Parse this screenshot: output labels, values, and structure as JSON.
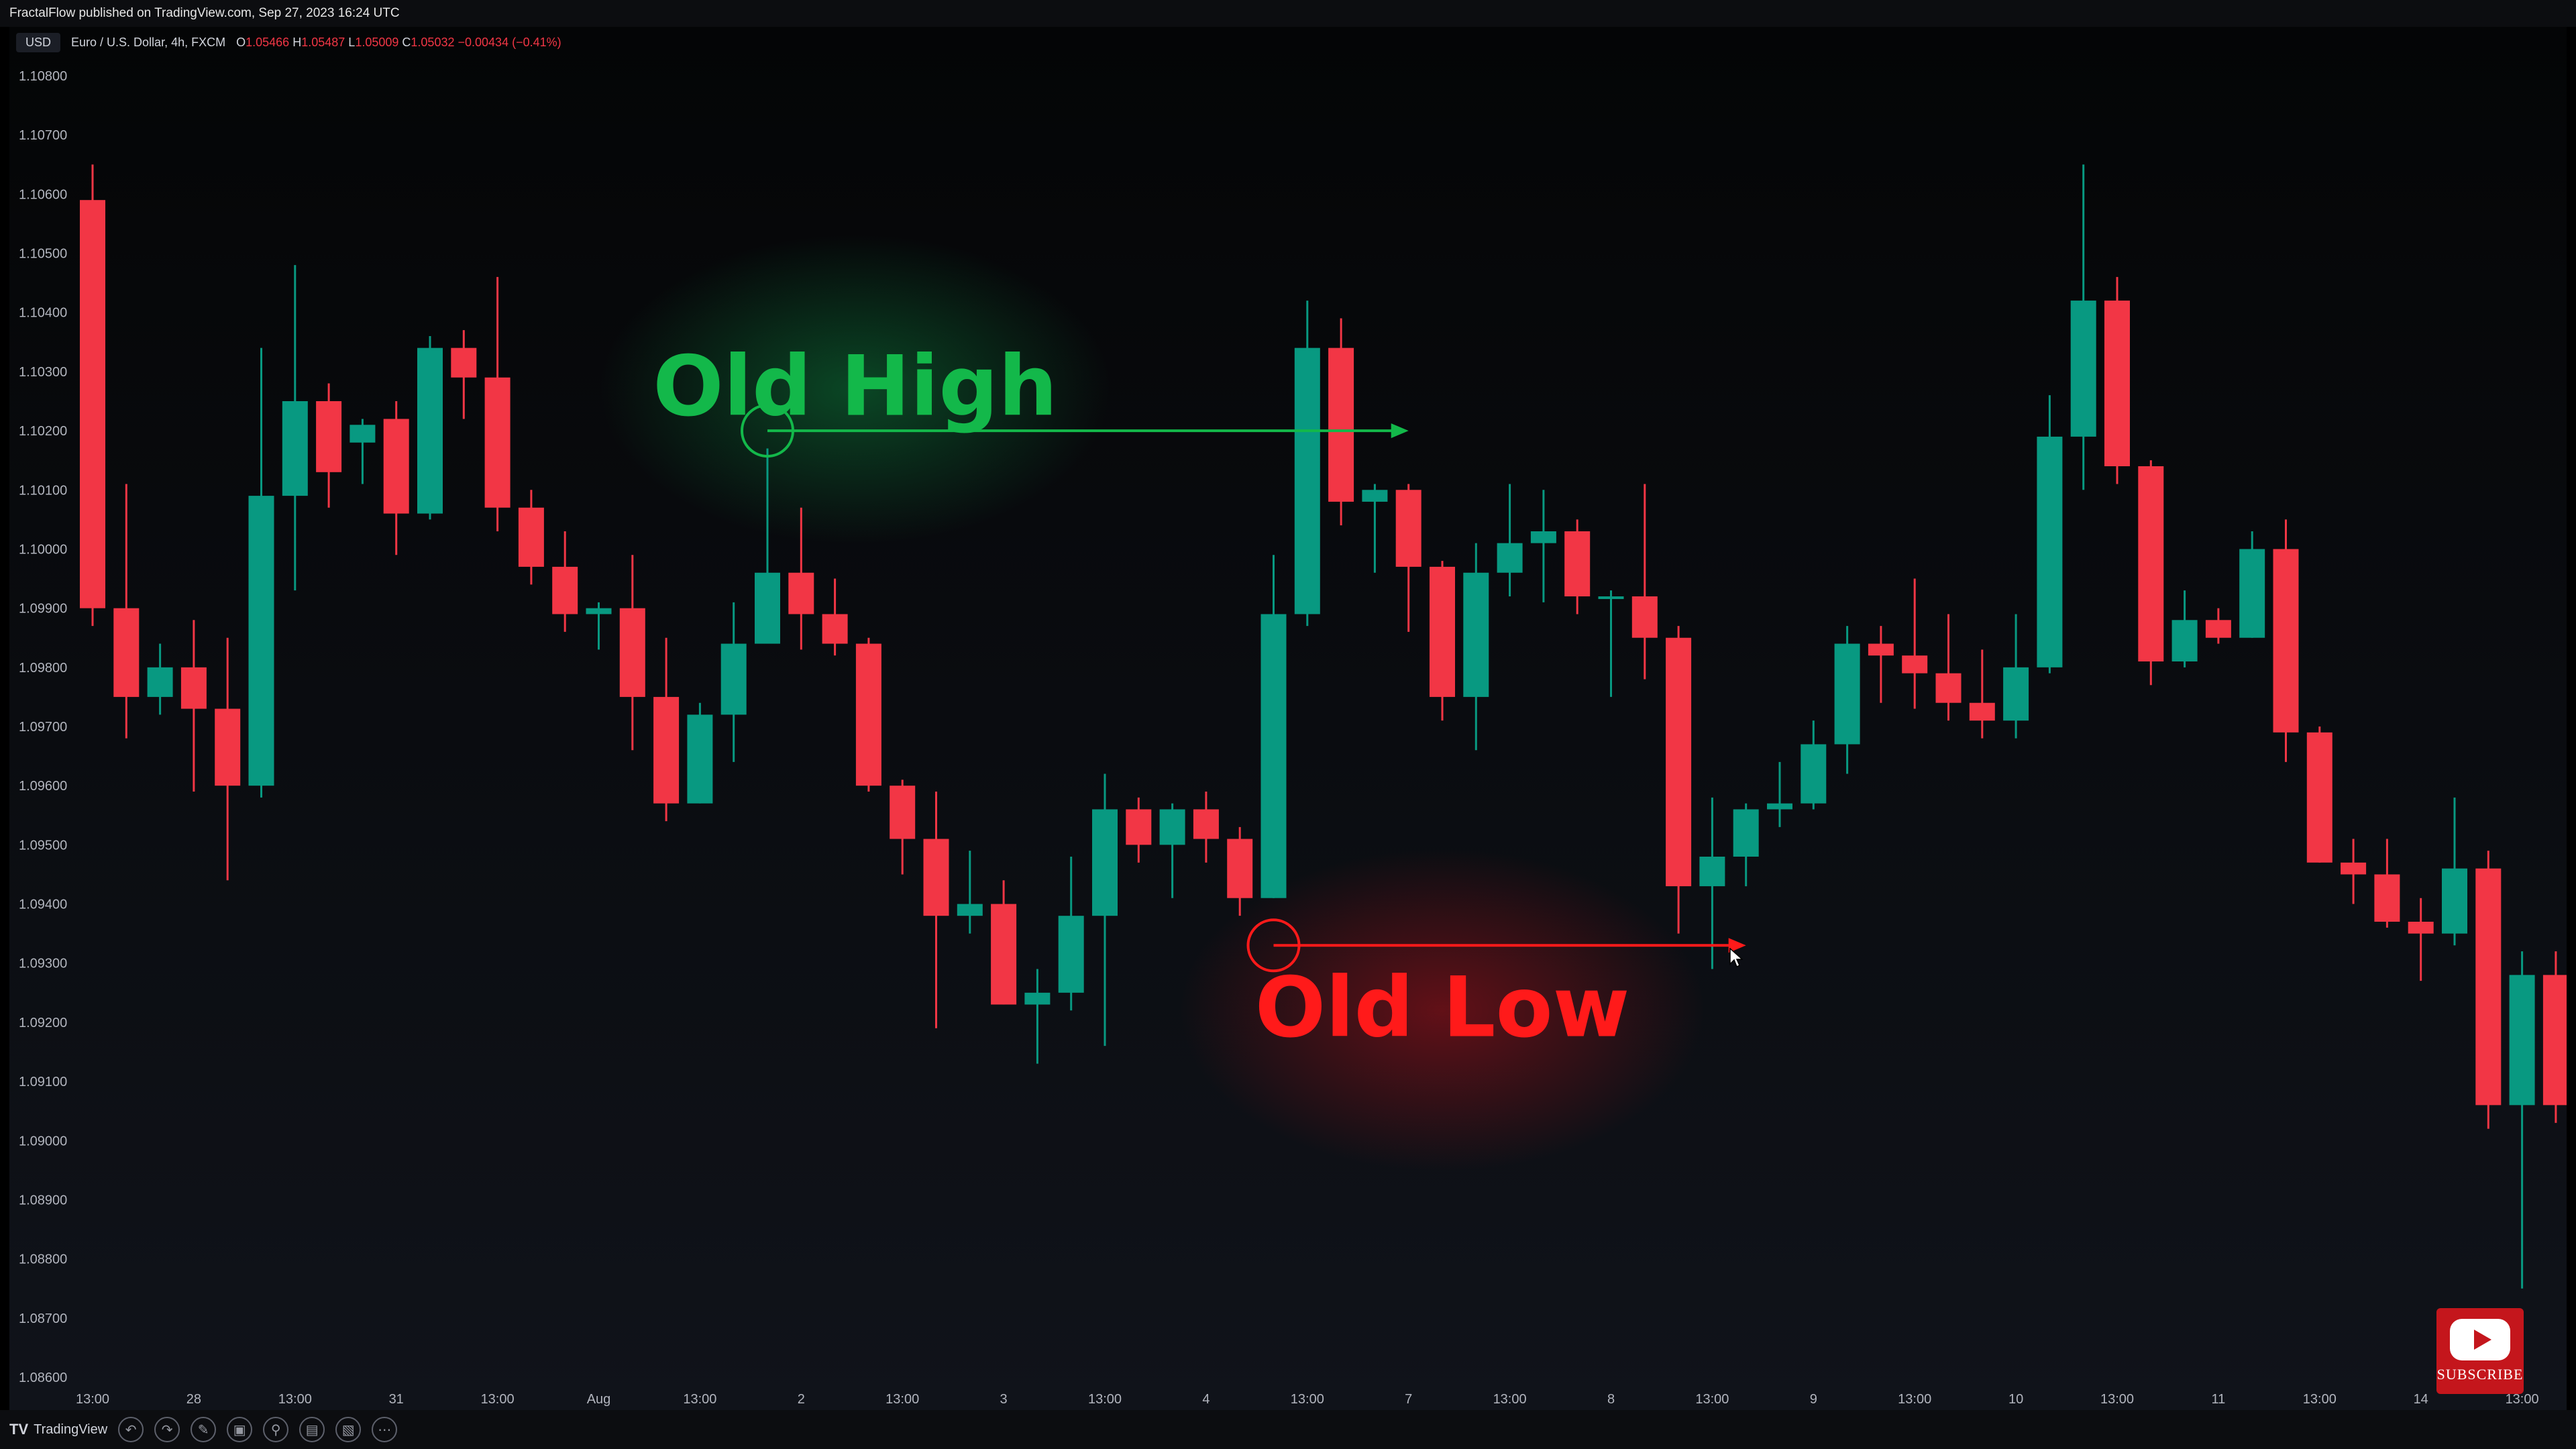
{
  "header": {
    "publisher_line": "FractalFlow published on TradingView.com, Sep 27, 2023 16:24 UTC"
  },
  "legend": {
    "currency": "USD",
    "symbol": "Euro / U.S. Dollar, 4h, FXCM",
    "open_label": "O",
    "open": "1.05466",
    "high_label": "H",
    "high": "1.05487",
    "low_label": "L",
    "low": "1.05009",
    "close_label": "C",
    "close": "1.05032",
    "change": "−0.00434 (−0.41%)"
  },
  "footer": {
    "brand": "TradingView",
    "tools": [
      "undo-icon",
      "redo-icon",
      "draw-icon",
      "screenshot-icon",
      "zoom-icon",
      "layout-icon",
      "compare-icon",
      "more-icon"
    ]
  },
  "youtube": {
    "label": "SUBSCRIBE"
  },
  "colors": {
    "up": "#089981",
    "down": "#f23645",
    "old_high": "#13b84a",
    "old_low": "#ff1a1a",
    "axis_text": "#b2b5be"
  },
  "chart_data": {
    "type": "candlestick",
    "title": "",
    "y_ticks": [
      "1.10800",
      "1.10700",
      "1.10600",
      "1.10500",
      "1.10400",
      "1.10300",
      "1.10200",
      "1.10100",
      "1.10000",
      "1.09900",
      "1.09800",
      "1.09700",
      "1.09600",
      "1.09500",
      "1.09400",
      "1.09300",
      "1.09200",
      "1.09100",
      "1.09000",
      "1.08900",
      "1.08800",
      "1.08700",
      "1.08600"
    ],
    "ylim": [
      1.086,
      1.108
    ],
    "x_ticks": [
      {
        "label": "13:00",
        "i": 0
      },
      {
        "label": "28",
        "i": 3
      },
      {
        "label": "13:00",
        "i": 6
      },
      {
        "label": "31",
        "i": 9
      },
      {
        "label": "13:00",
        "i": 12
      },
      {
        "label": "Aug",
        "i": 15
      },
      {
        "label": "13:00",
        "i": 18
      },
      {
        "label": "2",
        "i": 21
      },
      {
        "label": "13:00",
        "i": 24
      },
      {
        "label": "3",
        "i": 27
      },
      {
        "label": "13:00",
        "i": 30
      },
      {
        "label": "4",
        "i": 33
      },
      {
        "label": "13:00",
        "i": 36
      },
      {
        "label": "7",
        "i": 39
      },
      {
        "label": "13:00",
        "i": 42
      },
      {
        "label": "8",
        "i": 45
      },
      {
        "label": "13:00",
        "i": 48
      },
      {
        "label": "9",
        "i": 51
      },
      {
        "label": "13:00",
        "i": 54
      },
      {
        "label": "10",
        "i": 57
      },
      {
        "label": "13:00",
        "i": 60
      },
      {
        "label": "11",
        "i": 63
      },
      {
        "label": "13:00",
        "i": 66
      },
      {
        "label": "14",
        "i": 69
      },
      {
        "label": "13:00",
        "i": 72
      }
    ],
    "candles": [
      {
        "o": 1.1059,
        "h": 1.1065,
        "l": 1.0987,
        "c": 1.099
      },
      {
        "o": 1.099,
        "h": 1.1011,
        "l": 1.0968,
        "c": 1.0975
      },
      {
        "o": 1.0975,
        "h": 1.0984,
        "l": 1.0972,
        "c": 1.098
      },
      {
        "o": 1.098,
        "h": 1.0988,
        "l": 1.0959,
        "c": 1.0973
      },
      {
        "o": 1.0973,
        "h": 1.0985,
        "l": 1.0944,
        "c": 1.096
      },
      {
        "o": 1.096,
        "h": 1.1034,
        "l": 1.0958,
        "c": 1.1009
      },
      {
        "o": 1.1009,
        "h": 1.1048,
        "l": 1.0993,
        "c": 1.1025
      },
      {
        "o": 1.1025,
        "h": 1.1028,
        "l": 1.1007,
        "c": 1.1013
      },
      {
        "o": 1.1018,
        "h": 1.1022,
        "l": 1.1011,
        "c": 1.1021
      },
      {
        "o": 1.1022,
        "h": 1.1025,
        "l": 1.0999,
        "c": 1.1006
      },
      {
        "o": 1.1006,
        "h": 1.1036,
        "l": 1.1005,
        "c": 1.1034
      },
      {
        "o": 1.1034,
        "h": 1.1037,
        "l": 1.1022,
        "c": 1.1029
      },
      {
        "o": 1.1029,
        "h": 1.1046,
        "l": 1.1003,
        "c": 1.1007
      },
      {
        "o": 1.1007,
        "h": 1.101,
        "l": 1.0994,
        "c": 1.0997
      },
      {
        "o": 1.0997,
        "h": 1.1003,
        "l": 1.0986,
        "c": 1.0989
      },
      {
        "o": 1.0989,
        "h": 1.0991,
        "l": 1.0983,
        "c": 1.099
      },
      {
        "o": 1.099,
        "h": 1.0999,
        "l": 1.0966,
        "c": 1.0975
      },
      {
        "o": 1.0975,
        "h": 1.0985,
        "l": 1.0954,
        "c": 1.0957
      },
      {
        "o": 1.0957,
        "h": 1.0974,
        "l": 1.0957,
        "c": 1.0972
      },
      {
        "o": 1.0972,
        "h": 1.0991,
        "l": 1.0964,
        "c": 1.0984
      },
      {
        "o": 1.0984,
        "h": 1.1017,
        "l": 1.0984,
        "c": 1.0996
      },
      {
        "o": 1.0996,
        "h": 1.1007,
        "l": 1.0983,
        "c": 1.0989
      },
      {
        "o": 1.0989,
        "h": 1.0995,
        "l": 1.0982,
        "c": 1.0984
      },
      {
        "o": 1.0984,
        "h": 1.0985,
        "l": 1.0959,
        "c": 1.096
      },
      {
        "o": 1.096,
        "h": 1.0961,
        "l": 1.0945,
        "c": 1.0951
      },
      {
        "o": 1.0951,
        "h": 1.0959,
        "l": 1.0919,
        "c": 1.0938
      },
      {
        "o": 1.0938,
        "h": 1.0949,
        "l": 1.0935,
        "c": 1.094
      },
      {
        "o": 1.094,
        "h": 1.0944,
        "l": 1.0923,
        "c": 1.0923
      },
      {
        "o": 1.0923,
        "h": 1.0929,
        "l": 1.0913,
        "c": 1.0925
      },
      {
        "o": 1.0925,
        "h": 1.0948,
        "l": 1.0922,
        "c": 1.0938
      },
      {
        "o": 1.0938,
        "h": 1.0962,
        "l": 1.0916,
        "c": 1.0956
      },
      {
        "o": 1.0956,
        "h": 1.0958,
        "l": 1.0947,
        "c": 1.095
      },
      {
        "o": 1.095,
        "h": 1.0957,
        "l": 1.0941,
        "c": 1.0956
      },
      {
        "o": 1.0956,
        "h": 1.0959,
        "l": 1.0947,
        "c": 1.0951
      },
      {
        "o": 1.0951,
        "h": 1.0953,
        "l": 1.0938,
        "c": 1.0941
      },
      {
        "o": 1.0941,
        "h": 1.0999,
        "l": 1.0941,
        "c": 1.0989
      },
      {
        "o": 1.0989,
        "h": 1.1042,
        "l": 1.0987,
        "c": 1.1034
      },
      {
        "o": 1.1034,
        "h": 1.1039,
        "l": 1.1004,
        "c": 1.1008
      },
      {
        "o": 1.1008,
        "h": 1.1011,
        "l": 1.0996,
        "c": 1.101
      },
      {
        "o": 1.101,
        "h": 1.1011,
        "l": 1.0986,
        "c": 1.0997
      },
      {
        "o": 1.0997,
        "h": 1.0998,
        "l": 1.0971,
        "c": 1.0975
      },
      {
        "o": 1.0975,
        "h": 1.1001,
        "l": 1.0966,
        "c": 1.0996
      },
      {
        "o": 1.0996,
        "h": 1.1011,
        "l": 1.0992,
        "c": 1.1001
      },
      {
        "o": 1.1001,
        "h": 1.101,
        "l": 1.0991,
        "c": 1.1003
      },
      {
        "o": 1.1003,
        "h": 1.1005,
        "l": 1.0989,
        "c": 1.0992
      },
      {
        "o": 1.0992,
        "h": 1.0993,
        "l": 1.0975,
        "c": 1.0992
      },
      {
        "o": 1.0992,
        "h": 1.1011,
        "l": 1.0978,
        "c": 1.0985
      },
      {
        "o": 1.0985,
        "h": 1.0987,
        "l": 1.0935,
        "c": 1.0943
      },
      {
        "o": 1.0943,
        "h": 1.0958,
        "l": 1.0929,
        "c": 1.0948
      },
      {
        "o": 1.0948,
        "h": 1.0957,
        "l": 1.0943,
        "c": 1.0956
      },
      {
        "o": 1.0956,
        "h": 1.0964,
        "l": 1.0953,
        "c": 1.0957
      },
      {
        "o": 1.0957,
        "h": 1.0971,
        "l": 1.0956,
        "c": 1.0967
      },
      {
        "o": 1.0967,
        "h": 1.0987,
        "l": 1.0962,
        "c": 1.0984
      },
      {
        "o": 1.0984,
        "h": 1.0987,
        "l": 1.0974,
        "c": 1.0982
      },
      {
        "o": 1.0982,
        "h": 1.0995,
        "l": 1.0973,
        "c": 1.0979
      },
      {
        "o": 1.0979,
        "h": 1.0989,
        "l": 1.0971,
        "c": 1.0974
      },
      {
        "o": 1.0974,
        "h": 1.0983,
        "l": 1.0968,
        "c": 1.0971
      },
      {
        "o": 1.0971,
        "h": 1.0989,
        "l": 1.0968,
        "c": 1.098
      },
      {
        "o": 1.098,
        "h": 1.1026,
        "l": 1.0979,
        "c": 1.1019
      },
      {
        "o": 1.1019,
        "h": 1.1065,
        "l": 1.101,
        "c": 1.1042
      },
      {
        "o": 1.1042,
        "h": 1.1046,
        "l": 1.1011,
        "c": 1.1014
      },
      {
        "o": 1.1014,
        "h": 1.1015,
        "l": 1.0977,
        "c": 1.0981
      },
      {
        "o": 1.0981,
        "h": 1.0993,
        "l": 1.098,
        "c": 1.0988
      },
      {
        "o": 1.0988,
        "h": 1.099,
        "l": 1.0984,
        "c": 1.0985
      },
      {
        "o": 1.0985,
        "h": 1.1003,
        "l": 1.0985,
        "c": 1.1
      },
      {
        "o": 1.1,
        "h": 1.1005,
        "l": 1.0964,
        "c": 1.0969
      },
      {
        "o": 1.0969,
        "h": 1.097,
        "l": 1.0947,
        "c": 1.0947
      },
      {
        "o": 1.0947,
        "h": 1.0951,
        "l": 1.094,
        "c": 1.0945
      },
      {
        "o": 1.0945,
        "h": 1.0951,
        "l": 1.0936,
        "c": 1.0937
      },
      {
        "o": 1.0937,
        "h": 1.0941,
        "l": 1.0927,
        "c": 1.0935
      },
      {
        "o": 1.0935,
        "h": 1.0958,
        "l": 1.0933,
        "c": 1.0946
      },
      {
        "o": 1.0946,
        "h": 1.0949,
        "l": 1.0902,
        "c": 1.0906
      },
      {
        "o": 1.0906,
        "h": 1.0932,
        "l": 1.0875,
        "c": 1.0928
      },
      {
        "o": 1.0928,
        "h": 1.0932,
        "l": 1.0903,
        "c": 1.0906
      }
    ],
    "annotations": [
      {
        "label": "Old High",
        "price": 1.102,
        "from_i": 20,
        "to_i": 39
      },
      {
        "label": "Old Low",
        "price": 1.0933,
        "from_i": 35,
        "to_i": 49
      }
    ]
  }
}
